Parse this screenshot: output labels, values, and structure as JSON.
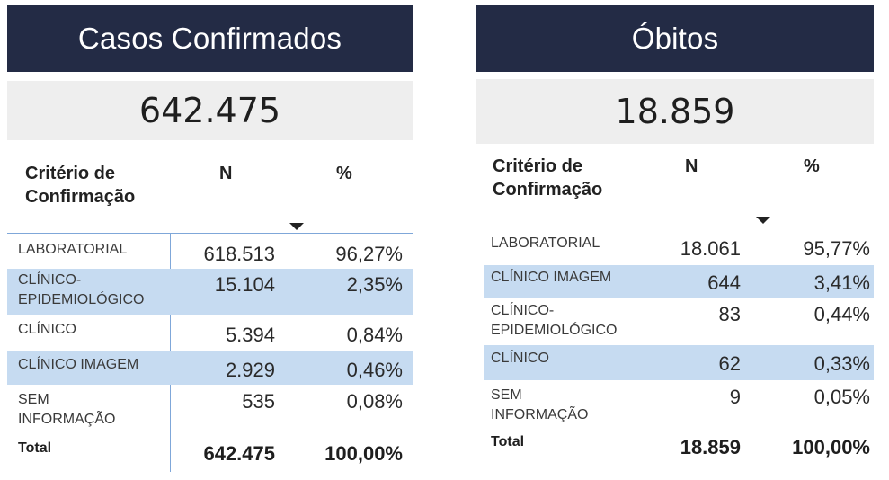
{
  "casos": {
    "title": "Casos Confirmados",
    "total_kpi": "642.475",
    "headers": {
      "criterio": "Critério de Confirmação",
      "n": "N",
      "pct": "%"
    },
    "rows": [
      {
        "label": "LABORATORIAL",
        "n": "618.513",
        "pct": "96,27%",
        "highlight": false
      },
      {
        "label": "CLÍNICO-EPIDEMIOLÓGICO",
        "n": "15.104",
        "pct": "2,35%",
        "highlight": true
      },
      {
        "label": "CLÍNICO",
        "n": "5.394",
        "pct": "0,84%",
        "highlight": false
      },
      {
        "label": "CLÍNICO IMAGEM",
        "n": "2.929",
        "pct": "0,46%",
        "highlight": true
      },
      {
        "label": "SEM INFORMAÇÃO",
        "n": "535",
        "pct": "0,08%",
        "highlight": false
      }
    ],
    "total": {
      "label": "Total",
      "n": "642.475",
      "pct": "100,00%"
    }
  },
  "obitos": {
    "title": "Óbitos",
    "total_kpi": "18.859",
    "headers": {
      "criterio": "Critério de Confirmação",
      "n": "N",
      "pct": "%"
    },
    "rows": [
      {
        "label": "LABORATORIAL",
        "n": "18.061",
        "pct": "95,77%",
        "highlight": false
      },
      {
        "label": "CLÍNICO IMAGEM",
        "n": "644",
        "pct": "3,41%",
        "highlight": true
      },
      {
        "label": "CLÍNICO-EPIDEMIOLÓGICO",
        "n": "83",
        "pct": "0,44%",
        "highlight": false
      },
      {
        "label": "CLÍNICO",
        "n": "62",
        "pct": "0,33%",
        "highlight": true
      },
      {
        "label": "SEM INFORMAÇÃO",
        "n": "9",
        "pct": "0,05%",
        "highlight": false
      }
    ],
    "total": {
      "label": "Total",
      "n": "18.859",
      "pct": "100,00%"
    }
  }
}
